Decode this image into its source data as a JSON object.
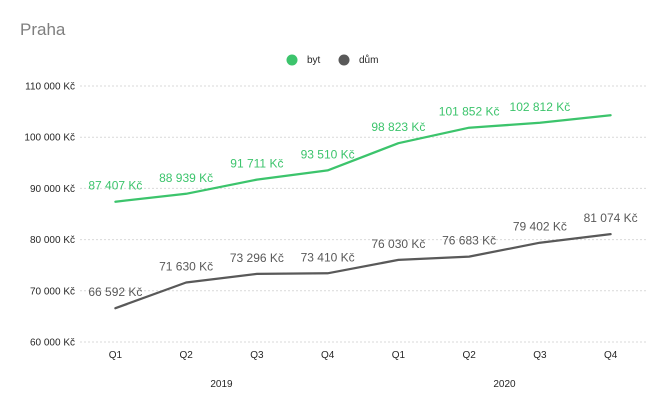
{
  "chart_data": {
    "type": "line",
    "title": "Praha",
    "categories": [
      "Q1",
      "Q2",
      "Q3",
      "Q4",
      "Q1",
      "Q2",
      "Q3",
      "Q4"
    ],
    "category_groups": [
      {
        "label": "2019",
        "span": [
          0,
          3
        ]
      },
      {
        "label": "2020",
        "span": [
          4,
          7
        ]
      }
    ],
    "ylim": [
      60000,
      110000
    ],
    "yticks": [
      60000,
      70000,
      80000,
      90000,
      100000,
      110000
    ],
    "ytick_labels": [
      "60 000 Kč",
      "70 000 Kč",
      "80 000 Kč",
      "90 000 Kč",
      "100 000 Kč",
      "110 000 Kč"
    ],
    "grid": true,
    "legend_position": "top-center",
    "series": [
      {
        "name": "byt",
        "color": "#3cc46c",
        "values": [
          87407,
          88939,
          91711,
          93510,
          98823,
          101852,
          102812,
          104300
        ],
        "labels": [
          "87 407 Kč",
          "88 939 Kč",
          "91 711 Kč",
          "93 510 Kč",
          "98 823 Kč",
          "101 852 Kč",
          "102 812 Kč",
          null
        ]
      },
      {
        "name": "dům",
        "color": "#595959",
        "values": [
          66592,
          71630,
          73296,
          73410,
          76030,
          76683,
          79402,
          81074
        ],
        "labels": [
          "66 592 Kč",
          "71 630 Kč",
          "73 296 Kč",
          "73 410 Kč",
          "76 030 Kč",
          "76 683 Kč",
          "79 402 Kč",
          "81 074 Kč"
        ]
      }
    ]
  }
}
